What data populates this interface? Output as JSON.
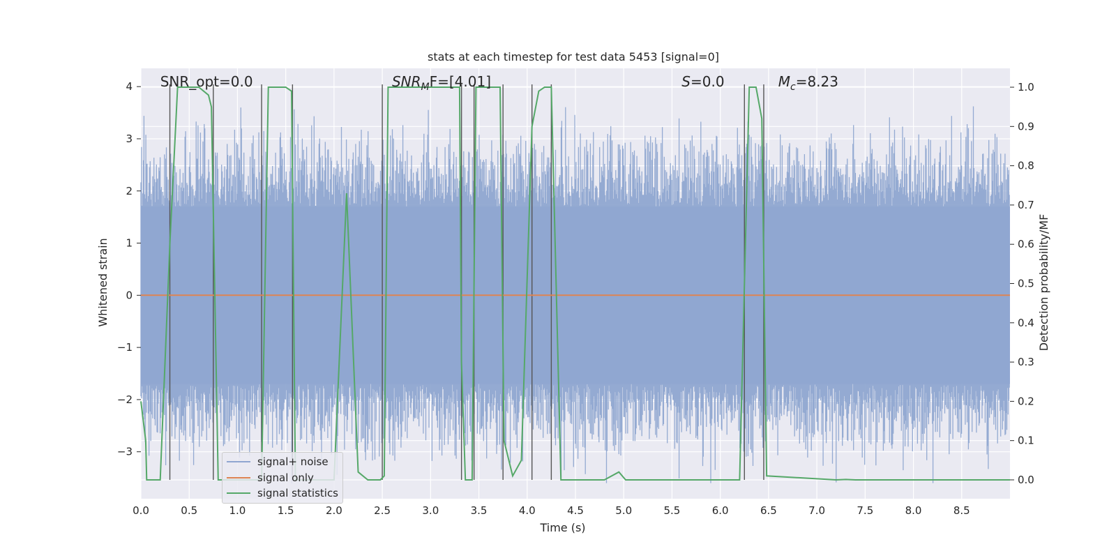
{
  "chart_data": {
    "type": "line",
    "title": "stats at each timestep for test data 5453 [signal=0]",
    "xlabel": "Time (s)",
    "ylabel_left": "Whitened strain",
    "ylabel_right": "Detection probability/MF",
    "xlim": [
      0.0,
      9.0
    ],
    "ylim_left": [
      -3.9,
      4.35
    ],
    "ylim_right": [
      -0.048,
      1.048
    ],
    "x_ticks": [
      0.0,
      0.5,
      1.0,
      1.5,
      2.0,
      2.5,
      3.0,
      3.5,
      4.0,
      4.5,
      5.0,
      5.5,
      6.0,
      6.5,
      7.0,
      7.5,
      8.0,
      8.5
    ],
    "x_tick_labels": [
      "0.0",
      "0.5",
      "1.0",
      "1.5",
      "2.0",
      "2.5",
      "3.0",
      "3.5",
      "4.0",
      "4.5",
      "5.0",
      "5.5",
      "6.0",
      "6.5",
      "7.0",
      "7.5",
      "8.0",
      "8.5"
    ],
    "y_left_ticks": [
      -3,
      -2,
      -1,
      0,
      1,
      2,
      3,
      4
    ],
    "y_left_tick_labels": [
      "−3",
      "−2",
      "−1",
      "0",
      "1",
      "2",
      "3",
      "4"
    ],
    "y_right_ticks": [
      0.0,
      0.1,
      0.2,
      0.3,
      0.4,
      0.5,
      0.6,
      0.7,
      0.8,
      0.9,
      1.0
    ],
    "y_right_tick_labels": [
      "0.0",
      "0.1",
      "0.2",
      "0.3",
      "0.4",
      "0.5",
      "0.6",
      "0.7",
      "0.8",
      "0.9",
      "1.0"
    ],
    "annotations": [
      {
        "text": "SNR_opt=0.0",
        "x": 0.2,
        "y": 4.08,
        "italic": false
      },
      {
        "text": "SNR",
        "sub": "M",
        "rest": "F=[4.01]",
        "x": 2.6,
        "y": 4.08,
        "italic": true
      },
      {
        "text": "S",
        "rest": "=0.0",
        "x": 5.6,
        "y": 4.08,
        "italic": true
      },
      {
        "text": "M",
        "sub": "c",
        "rest": "=8.23",
        "x": 6.6,
        "y": 4.08,
        "italic": true
      }
    ],
    "series": [
      {
        "name": "signal+ noise",
        "color": "#8fa6d0",
        "axis": "left",
        "style": "dense_noise",
        "amplitude_range": [
          -3.6,
          4.0
        ]
      },
      {
        "name": "signal only",
        "color": "#dd8452",
        "axis": "left",
        "x": [
          0.0,
          9.0
        ],
        "y": [
          0.0,
          0.0
        ]
      },
      {
        "name": "signal statistics",
        "color": "#55a868",
        "axis": "right",
        "x": [
          0.0,
          0.05,
          0.06,
          0.2,
          0.3,
          0.38,
          0.6,
          0.7,
          0.73,
          0.8,
          1.25,
          1.32,
          1.5,
          1.56,
          1.6,
          2.0,
          2.13,
          2.25,
          2.35,
          2.48,
          2.52,
          2.56,
          3.3,
          3.32,
          3.36,
          3.43,
          3.47,
          3.72,
          3.76,
          3.85,
          3.94,
          4.05,
          4.12,
          4.18,
          4.25,
          4.35,
          4.8,
          4.95,
          5.02,
          5.5,
          6.2,
          6.3,
          6.37,
          6.43,
          6.48,
          7.2,
          7.3,
          7.4,
          8.0,
          9.0
        ],
        "y": [
          0.2,
          0.1,
          0.0,
          0.0,
          0.6,
          1.0,
          1.0,
          0.98,
          0.95,
          0.0,
          0.0,
          1.0,
          1.0,
          0.99,
          0.0,
          0.0,
          0.73,
          0.02,
          0.0,
          0.0,
          0.01,
          1.0,
          1.0,
          0.3,
          0.0,
          0.0,
          1.0,
          1.0,
          0.1,
          0.01,
          0.05,
          0.9,
          0.99,
          1.0,
          1.0,
          0.0,
          0.0,
          0.02,
          0.0,
          0.0,
          0.0,
          1.0,
          1.0,
          0.92,
          0.01,
          0.0,
          0.001,
          0.0,
          0.0,
          0.0
        ]
      }
    ],
    "vertical_lines_x": [
      0.3,
      0.75,
      1.25,
      1.57,
      2.5,
      3.32,
      3.45,
      3.75,
      4.05,
      4.25,
      6.25,
      6.45
    ],
    "legend": {
      "placement": "lower-left",
      "entries": [
        "signal+ noise",
        "signal only",
        "signal statistics"
      ]
    }
  }
}
